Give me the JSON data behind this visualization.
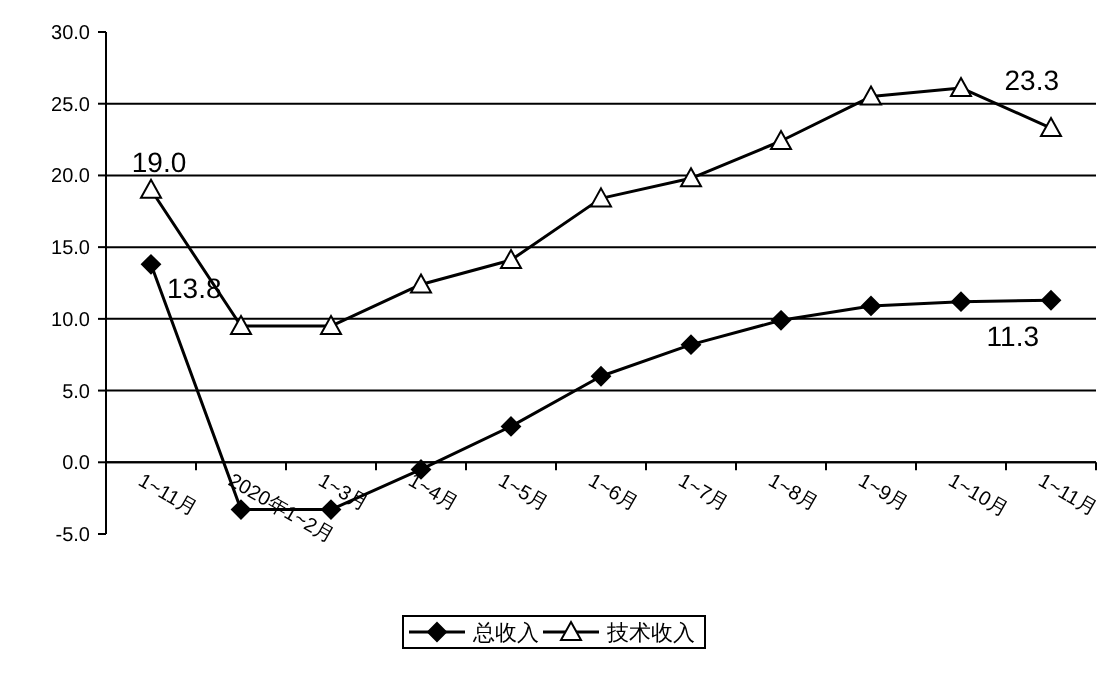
{
  "chart_data": {
    "type": "line",
    "categories": [
      "1~11月",
      "2020年1~2月",
      "1~3月",
      "1~4月",
      "1~5月",
      "1~6月",
      "1~7月",
      "1~8月",
      "1~9月",
      "1~10月",
      "1~11月"
    ],
    "series": [
      {
        "name": "总收入",
        "color": "#000000",
        "marker": "diamond",
        "values": [
          13.8,
          -3.3,
          -3.3,
          -0.5,
          2.5,
          6.0,
          8.2,
          9.9,
          10.9,
          11.2,
          11.3
        ],
        "value_labels": [
          "13.8",
          null,
          null,
          null,
          null,
          null,
          null,
          null,
          null,
          null,
          "11.3"
        ]
      },
      {
        "name": "技术收入",
        "color": "#000000",
        "marker": "triangle",
        "values": [
          19.0,
          9.5,
          9.5,
          12.4,
          14.1,
          18.4,
          19.8,
          22.4,
          25.5,
          26.1,
          23.3
        ],
        "value_labels": [
          "19.0",
          null,
          null,
          null,
          null,
          null,
          null,
          null,
          null,
          null,
          "23.3"
        ]
      }
    ],
    "ylim": [
      -5,
      30
    ],
    "yticks": [
      {
        "value": -5,
        "label": "-5.0"
      },
      {
        "value": 0,
        "label": "0.0"
      },
      {
        "value": 5,
        "label": "5.0"
      },
      {
        "value": 10,
        "label": "10.0"
      },
      {
        "value": 15,
        "label": "15.0"
      },
      {
        "value": 20,
        "label": "20.0"
      },
      {
        "value": 25,
        "label": "25.0"
      },
      {
        "value": 30,
        "label": "30.0"
      }
    ],
    "grid": "y",
    "legend": "bottom",
    "line_style": "solid"
  }
}
